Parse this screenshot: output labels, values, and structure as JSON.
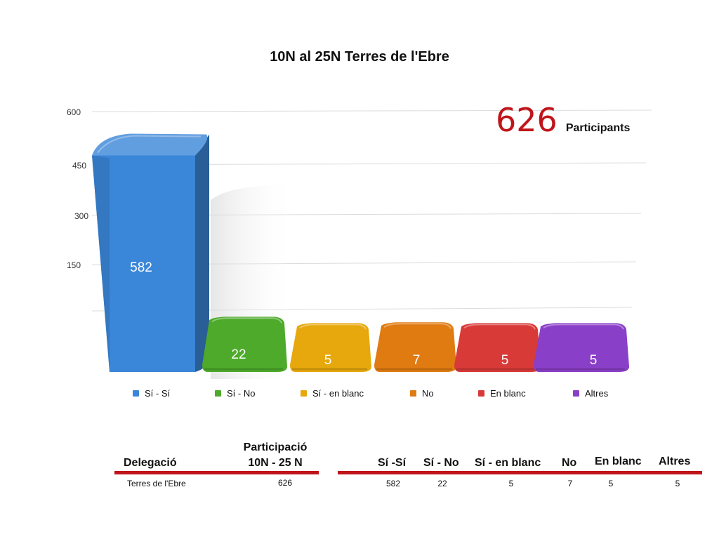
{
  "chart_data": {
    "type": "bar",
    "title": "10N al 25N Terres de l'Ebre",
    "categories": [
      "Sí - Sí",
      "Sí - No",
      "Sí - en blanc",
      "No",
      "En blanc",
      "Altres"
    ],
    "values": [
      582,
      22,
      5,
      7,
      5,
      5
    ],
    "colors": [
      "#3a86d8",
      "#4daa2a",
      "#e6a80c",
      "#e07b12",
      "#d83a38",
      "#8a3fc8"
    ],
    "yticks": [
      "150",
      "300",
      "450",
      "600"
    ],
    "ylim": [
      0,
      600
    ],
    "grid": true,
    "legend": "bottom"
  },
  "highlight": {
    "value": "626",
    "label": "Participants"
  },
  "table": {
    "col_delegacio": "Delegació",
    "col_participacio_1": "Participació",
    "col_participacio_2": "10N - 25 N",
    "col_si_si": "Sí -Sí",
    "col_si_no": "Sí - No",
    "col_si_blanc": "Sí - en blanc",
    "col_no": "No",
    "col_blanc": "En blanc",
    "col_altres": "Altres",
    "row": {
      "delegacio": "Terres de l'Ebre",
      "participacio": "626",
      "si_si": "582",
      "si_no": "22",
      "si_blanc": "5",
      "no": "7",
      "blanc": "5",
      "altres": "5"
    }
  }
}
